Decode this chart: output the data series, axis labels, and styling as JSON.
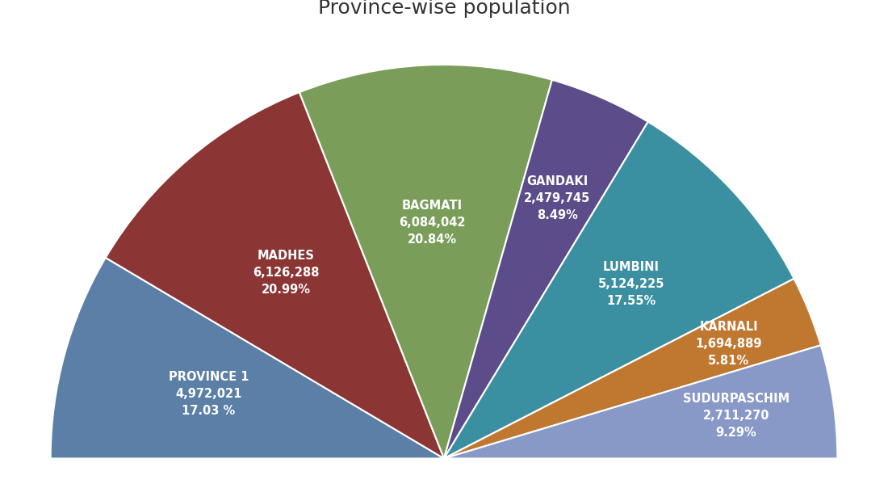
{
  "title": "Province-wise population",
  "title_fontsize": 18,
  "title_color": "#333333",
  "background_color": "#ffffff",
  "provinces": [
    {
      "name": "PROVINCE 1",
      "population": 4972021,
      "percent": "17.03 %",
      "color": "#5b7fa6",
      "label_r": 0.62
    },
    {
      "name": "MADHES",
      "population": 6126288,
      "percent": "20.99%",
      "color": "#8b3535",
      "label_r": 0.62
    },
    {
      "name": "BAGMATI",
      "population": 6084042,
      "percent": "20.84%",
      "color": "#7a9e5a",
      "label_r": 0.6
    },
    {
      "name": "GANDAKI",
      "population": 2479745,
      "percent": "8.49%",
      "color": "#5c4d8a",
      "label_r": 0.72
    },
    {
      "name": "LUMBINI",
      "population": 5124225,
      "percent": "17.55%",
      "color": "#3a8fa0",
      "label_r": 0.65
    },
    {
      "name": "KARNALI",
      "population": 1694889,
      "percent": "5.81%",
      "color": "#c07830",
      "label_r": 0.78
    },
    {
      "name": "SUDURPASCHIM",
      "population": 2711270,
      "percent": "9.29%",
      "color": "#8899c8",
      "label_r": 0.75
    }
  ],
  "text_color": "#ffffff",
  "label_fontsize": 10.5,
  "label_name_fontsize": 11,
  "edge_color": "#ffffff",
  "edge_linewidth": 1.5
}
